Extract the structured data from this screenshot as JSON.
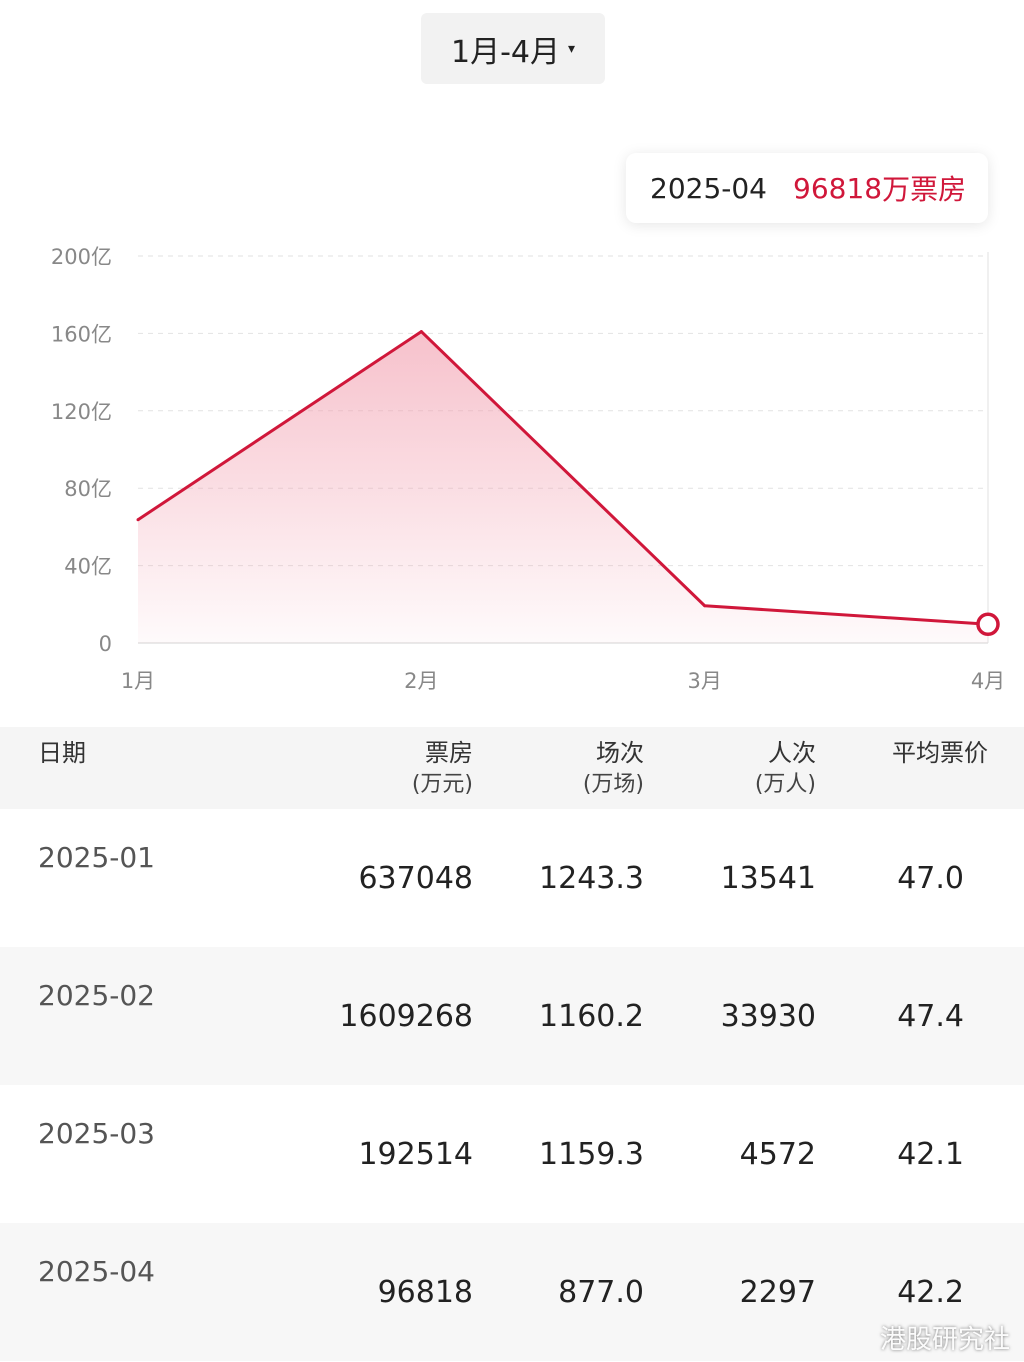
{
  "range_selector": {
    "label": "1月-4月",
    "caret": "▾"
  },
  "tooltip": {
    "date": "2025-04",
    "value": "96818",
    "unit": "万票房"
  },
  "colors": {
    "line": "#d0173a",
    "fill": "#f2a0b0",
    "grid": "#e2e2e2"
  },
  "chart_data": {
    "type": "area",
    "categories": [
      "1月",
      "2月",
      "3月",
      "4月"
    ],
    "values": [
      63.7048,
      160.9268,
      19.2514,
      9.6818
    ],
    "ylim": [
      0,
      200
    ],
    "yticks": [
      0,
      40,
      80,
      120,
      160,
      200
    ],
    "ytick_labels": [
      "0",
      "40亿",
      "80亿",
      "120亿",
      "160亿",
      "200亿"
    ],
    "grid": true,
    "highlighted_index": 3
  },
  "table": {
    "headers": [
      {
        "title": "日期",
        "sub": ""
      },
      {
        "title": "票房",
        "sub": "(万元)"
      },
      {
        "title": "场次",
        "sub": "(万场)"
      },
      {
        "title": "人次",
        "sub": "(万人)"
      },
      {
        "title": "平均票价",
        "sub": ""
      }
    ],
    "rows": [
      [
        "2025-01",
        "637048",
        "1243.3",
        "13541",
        "47.0"
      ],
      [
        "2025-02",
        "1609268",
        "1160.2",
        "33930",
        "47.4"
      ],
      [
        "2025-03",
        "192514",
        "1159.3",
        "4572",
        "42.1"
      ],
      [
        "2025-04",
        "96818",
        "877.0",
        "2297",
        "42.2"
      ]
    ]
  },
  "watermark": "港股研究社"
}
